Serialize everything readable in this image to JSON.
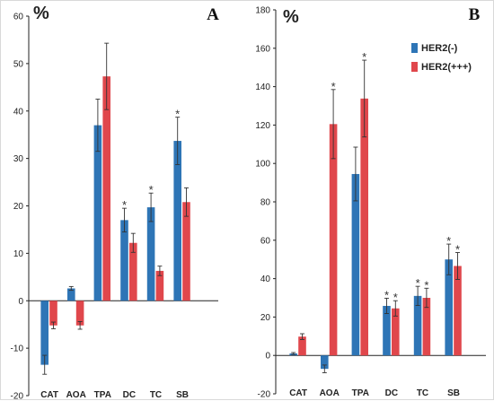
{
  "colors": {
    "her2_neg": "#2E75B6",
    "her2_pos": "#E0474C",
    "axis": "#222222",
    "error": "#333333"
  },
  "legend": {
    "position": "top-right",
    "items": [
      "HER2(-)",
      "HER2(+++)"
    ]
  },
  "chart_data": [
    {
      "type": "bar",
      "panel": "A",
      "ylabel": "%",
      "ylim": [
        -20,
        60
      ],
      "yticks": [
        -20,
        -10,
        0,
        10,
        20,
        30,
        40,
        50,
        60
      ],
      "categories": [
        "CAT",
        "AOA",
        "TPA",
        "DC",
        "TC",
        "SB"
      ],
      "series": [
        {
          "name": "HER2(-)",
          "values": [
            -13.5,
            2.6,
            37,
            17,
            19.7,
            33.7
          ],
          "errors": [
            2,
            0.4,
            5.5,
            2.5,
            3,
            5
          ],
          "significant": [
            false,
            false,
            false,
            true,
            true,
            true
          ]
        },
        {
          "name": "HER2(+++)",
          "values": [
            -5.2,
            -5.2,
            47.3,
            12.2,
            6.3,
            20.8
          ],
          "errors": [
            0.7,
            0.8,
            7,
            2,
            1,
            3
          ],
          "significant": [
            false,
            false,
            false,
            false,
            false,
            false
          ]
        }
      ],
      "grid": false
    },
    {
      "type": "bar",
      "panel": "B",
      "ylabel": "%",
      "ylim": [
        -20,
        180
      ],
      "yticks": [
        -20,
        0,
        20,
        40,
        60,
        80,
        100,
        120,
        140,
        160,
        180
      ],
      "categories": [
        "CAT",
        "AOA",
        "TPA",
        "DC",
        "TC",
        "SB"
      ],
      "series": [
        {
          "name": "HER2(-)",
          "values": [
            1,
            -7,
            94.5,
            25.8,
            31,
            50
          ],
          "errors": [
            0.5,
            2,
            14,
            4,
            5,
            8
          ],
          "significant": [
            false,
            false,
            false,
            true,
            true,
            true
          ]
        },
        {
          "name": "HER2(+++)",
          "values": [
            9.8,
            120.5,
            133.8,
            24.5,
            30,
            46.6
          ],
          "errors": [
            1.5,
            18,
            20,
            4,
            5,
            7
          ],
          "significant": [
            false,
            true,
            true,
            true,
            true,
            true
          ]
        }
      ],
      "grid": false
    }
  ]
}
